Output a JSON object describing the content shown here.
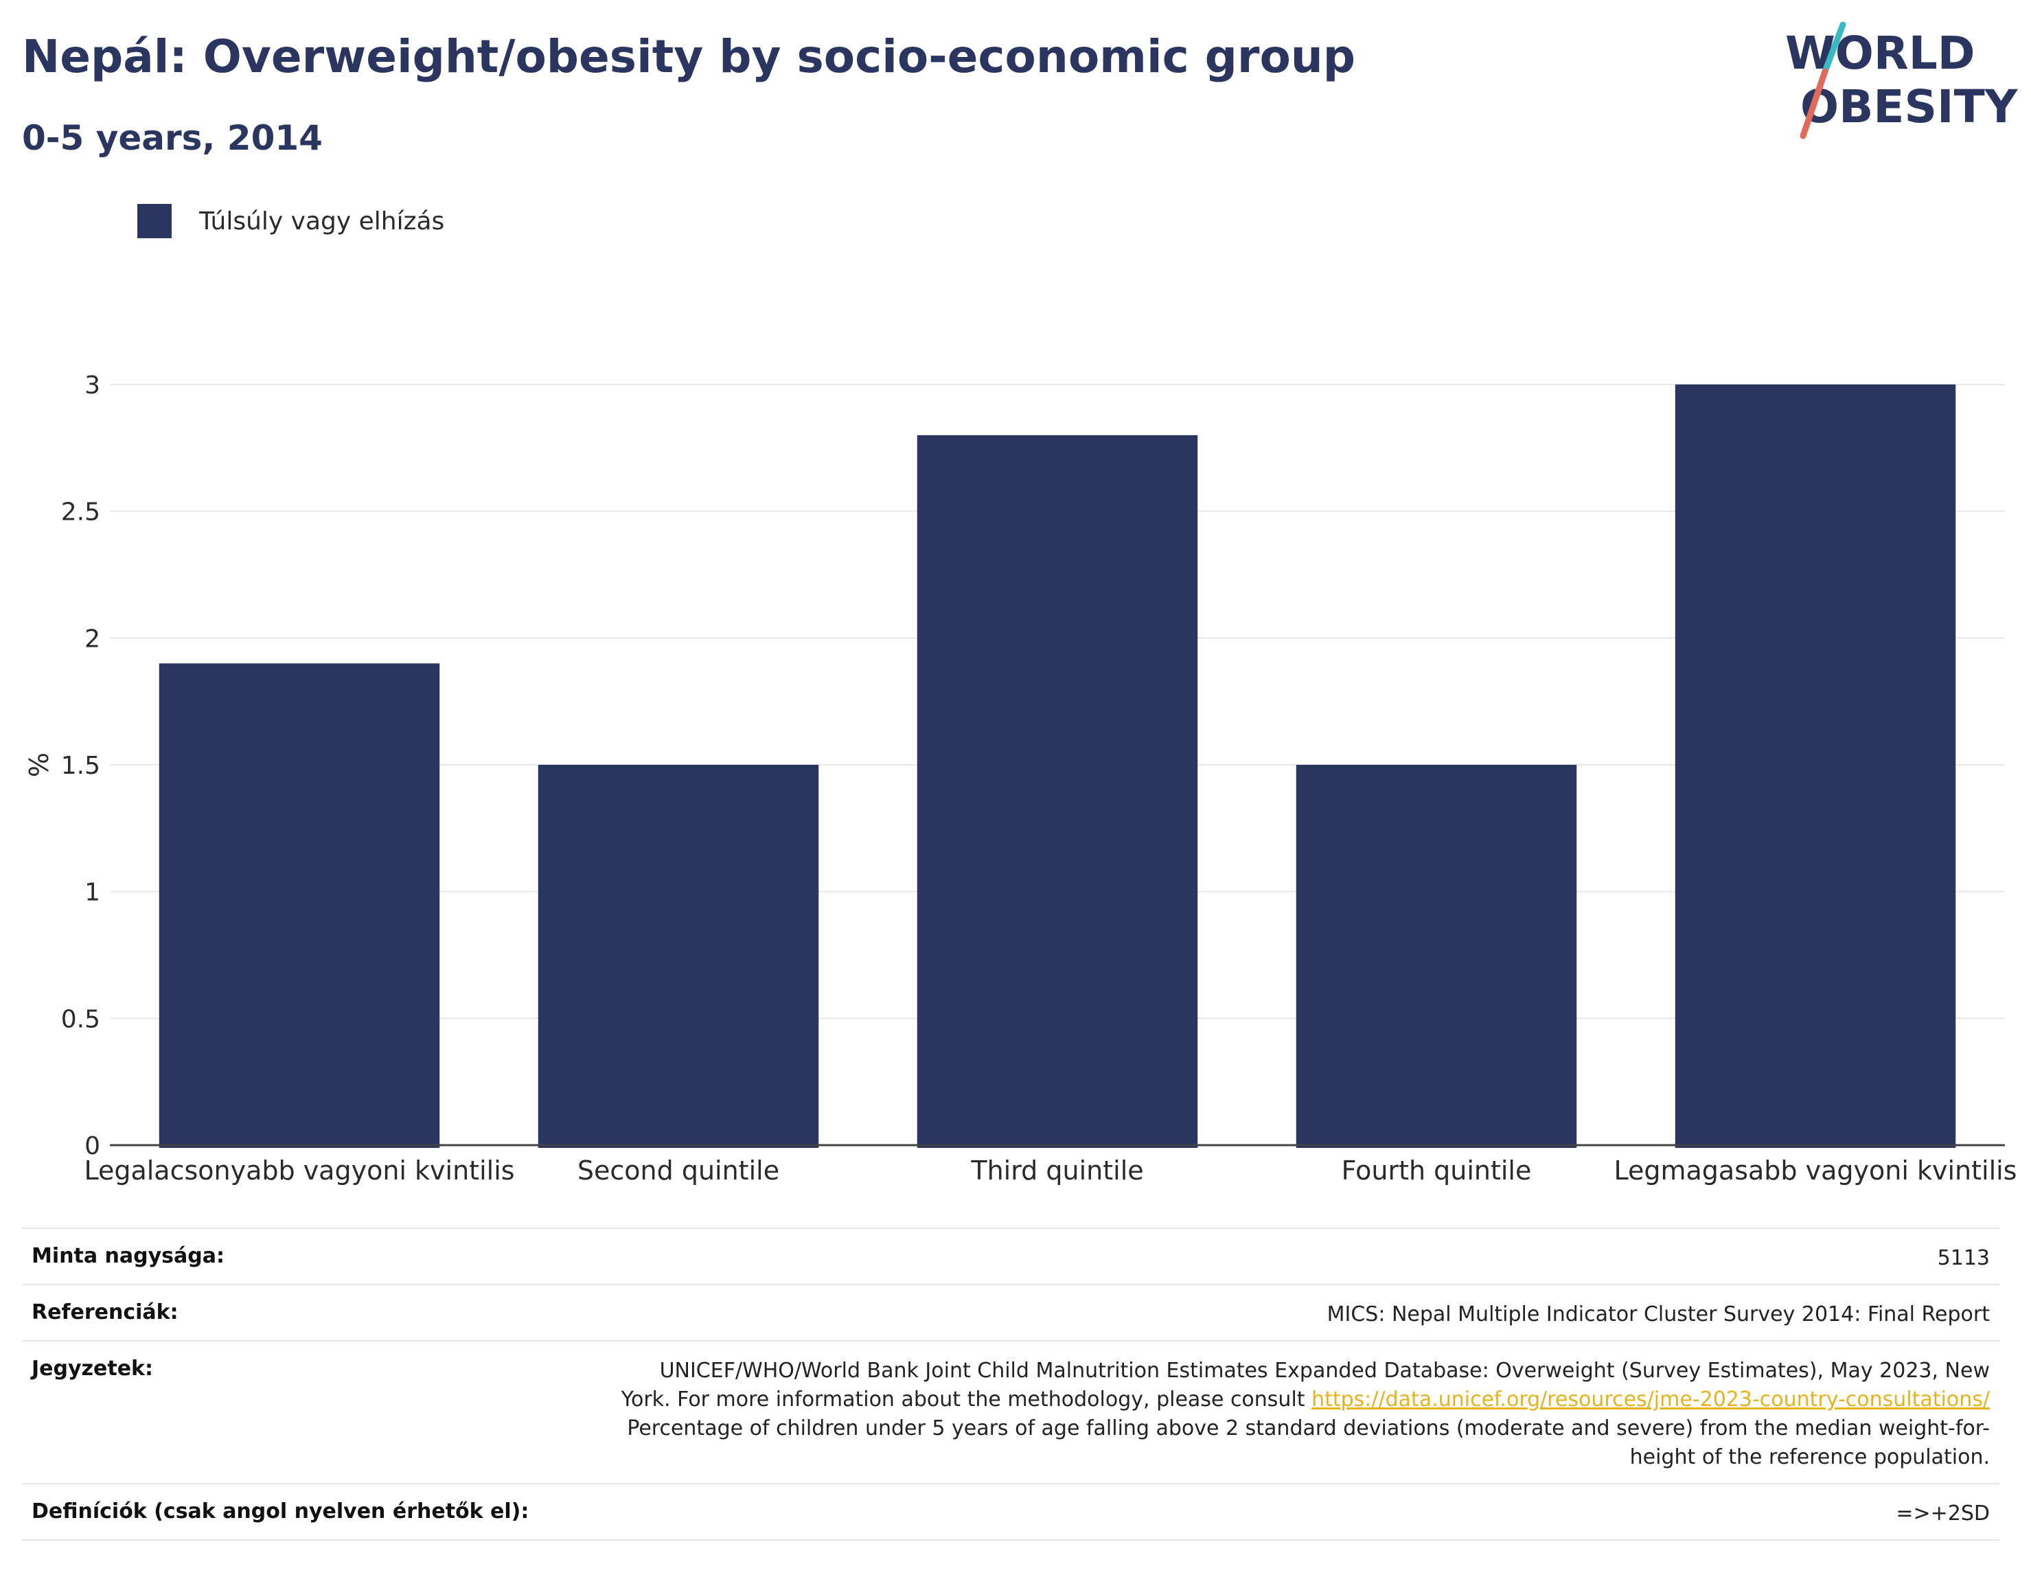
{
  "header": {
    "title": "Nepál: Overweight/obesity by socio-economic group",
    "subtitle": "0-5 years, 2014"
  },
  "logo": {
    "line1": "WORLD",
    "line2": "OBESITY"
  },
  "colors": {
    "bar": "#2a3660",
    "grid": "#e8e8e8",
    "axis": "#444444",
    "link": "#e8b21c"
  },
  "chart_data": {
    "type": "bar",
    "categories": [
      "Legalacsonyabb vagyoni kvintilis",
      "Second quintile",
      "Third quintile",
      "Fourth quintile",
      "Legmagasabb vagyoni kvintilis"
    ],
    "series": [
      {
        "name": "Túlsúly vagy elhízás",
        "values": [
          1.9,
          1.5,
          2.8,
          1.5,
          3.0
        ]
      }
    ],
    "ylabel": "%",
    "ylim": [
      0,
      3
    ],
    "yticks": [
      0,
      0.5,
      1,
      1.5,
      2,
      2.5,
      3
    ],
    "ytick_labels": [
      "0",
      "0.5",
      "1",
      "1.5",
      "2",
      "2.5",
      "3"
    ],
    "grid": true,
    "legend_position": "top-left"
  },
  "info": {
    "sample_label": "Minta nagysága:",
    "sample_value": "5113",
    "references_label": "Referenciák:",
    "references_value": "MICS: Nepal Multiple Indicator Cluster Survey 2014: Final Report",
    "notes_label": "Jegyzetek:",
    "notes_line1": "UNICEF/WHO/World Bank Joint Child Malnutrition Estimates Expanded Database: Overweight (Survey Estimates), May 2023, New",
    "notes_line2_prefix": "York. For more information about the methodology, please consult ",
    "notes_link": "https://data.unicef.org/resources/jme-2023-country-consultations/",
    "notes_line3": "Percentage of children under 5 years of age falling above 2 standard deviations (moderate and severe) from the median weight-for-",
    "notes_line4": "height of the reference population.",
    "definitions_label": "Definíciók (csak angol nyelven érhetők el):",
    "definitions_value": "=>+2SD"
  }
}
